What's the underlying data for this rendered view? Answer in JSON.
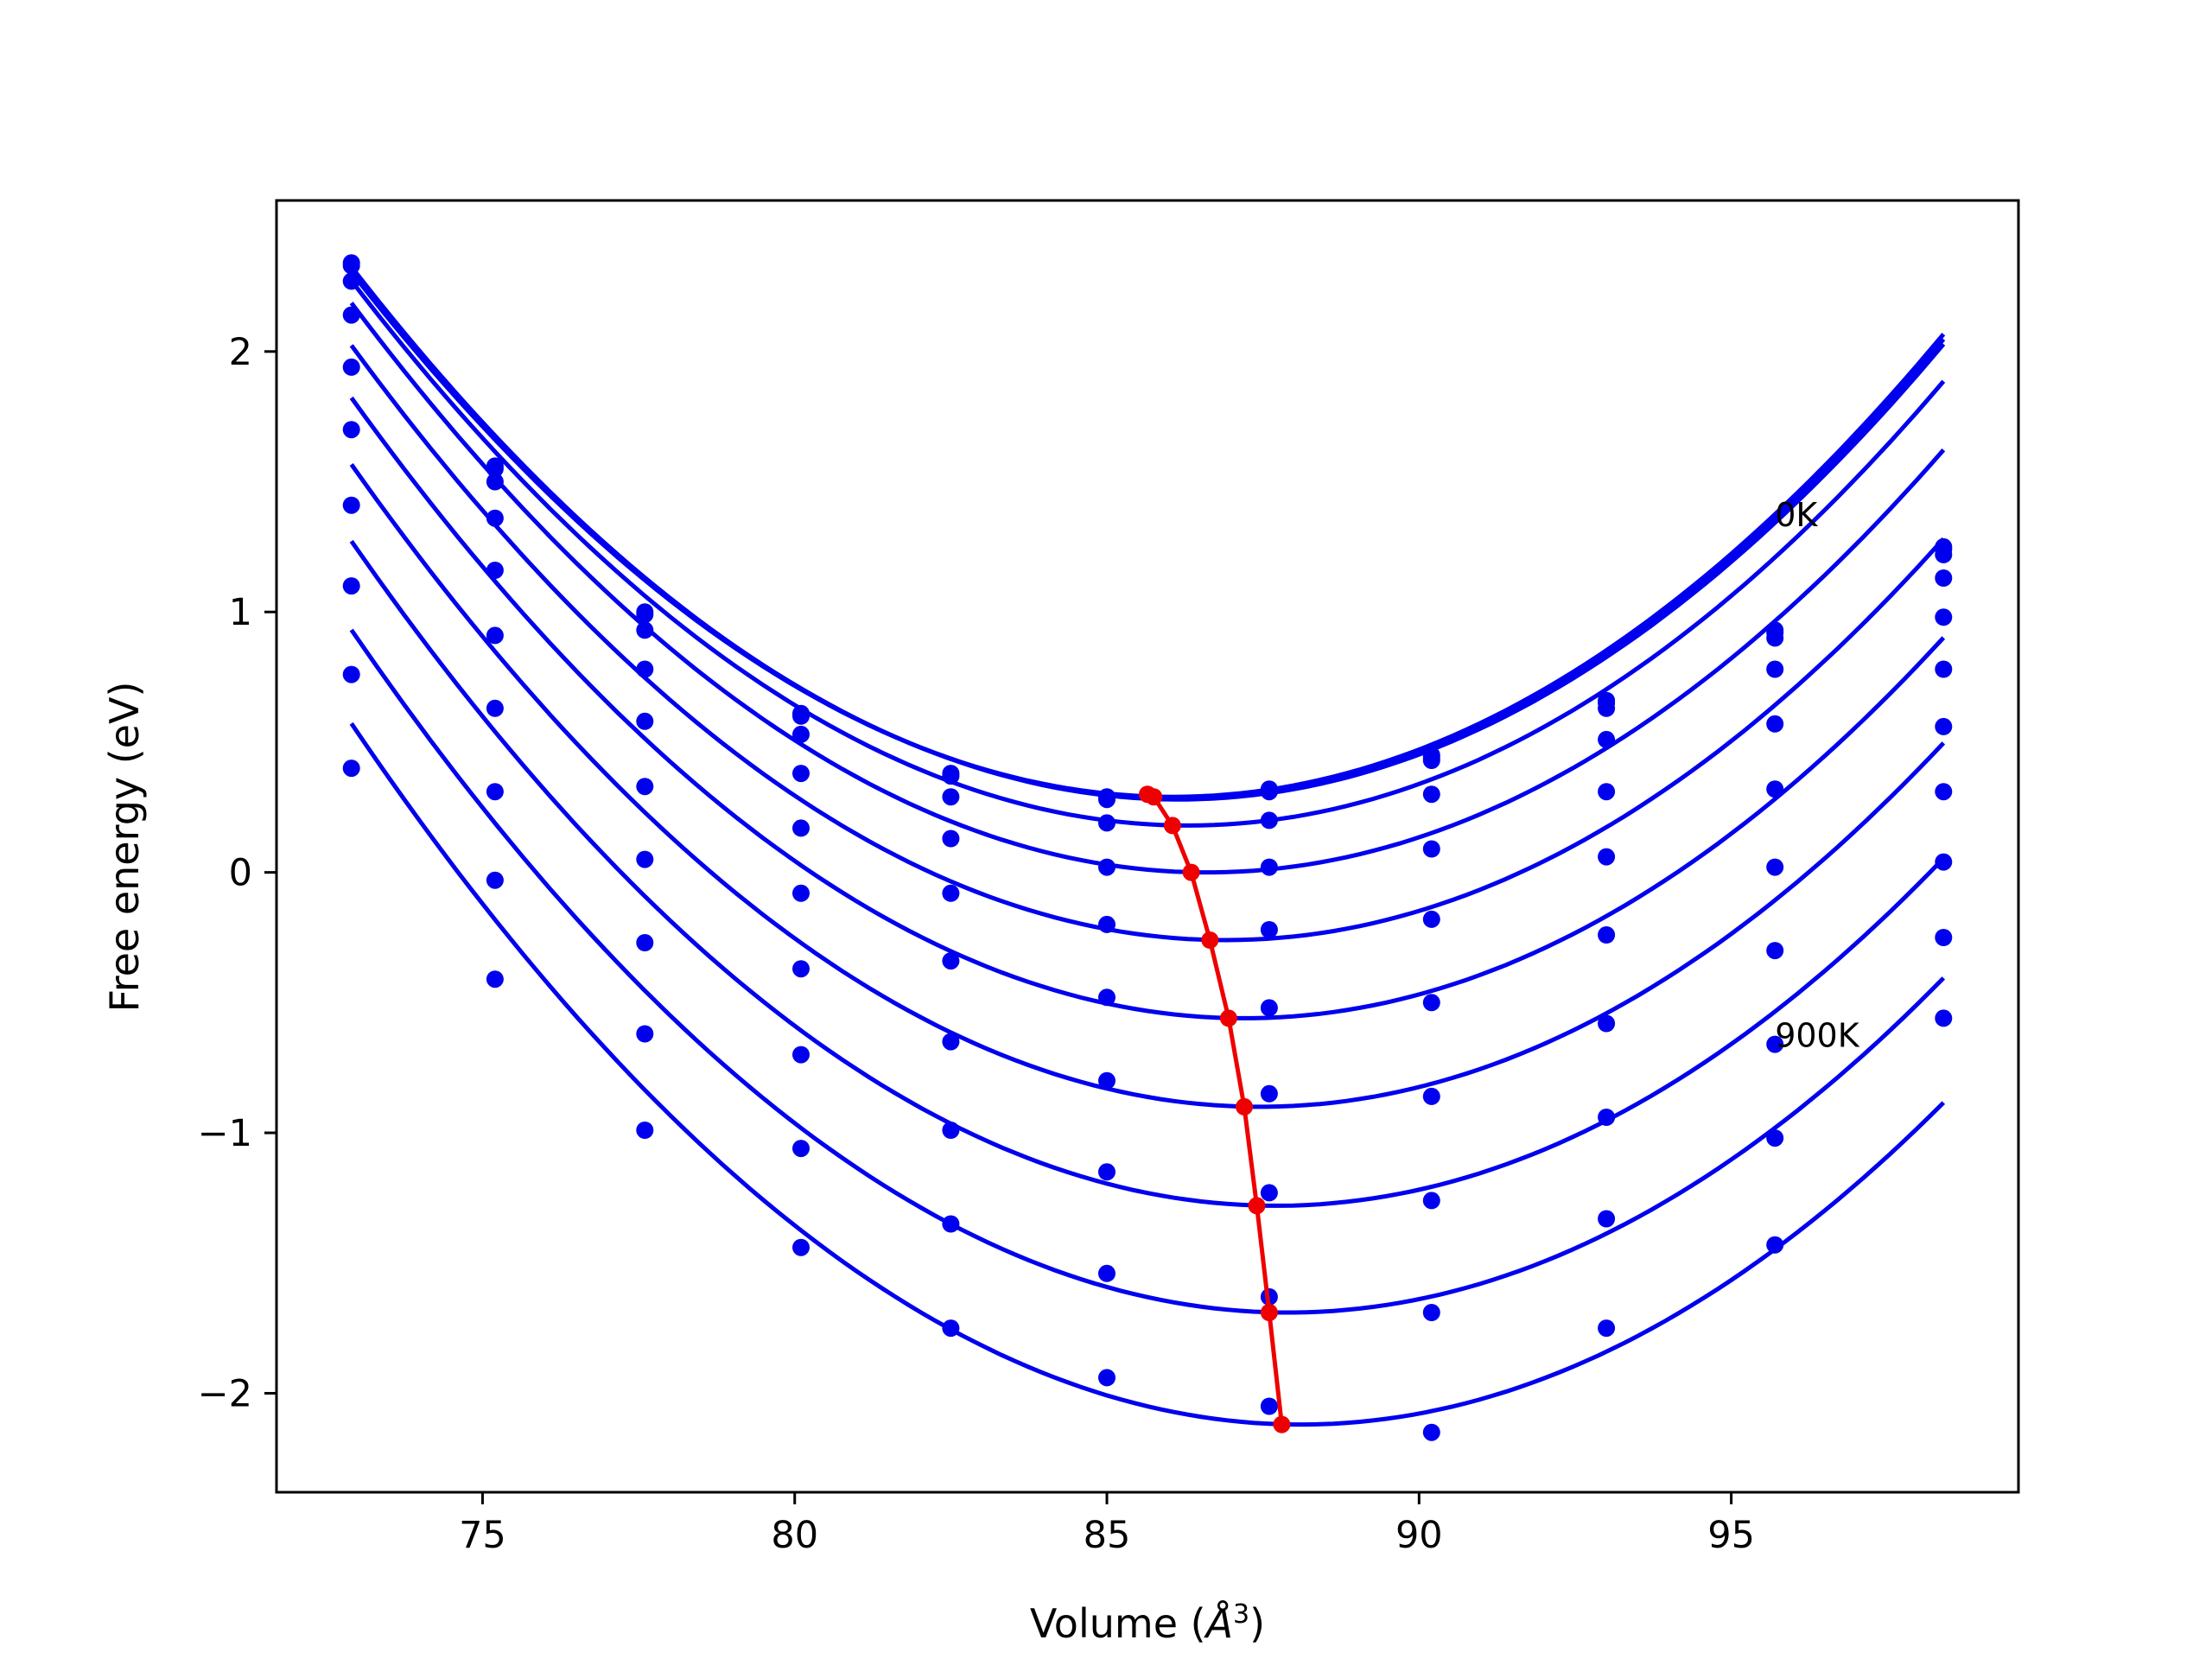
{
  "chart_data": {
    "type": "scatter",
    "title": "",
    "xlabel_prefix": "Volume (",
    "xlabel_symbol": "Å",
    "xlabel_exp": "3",
    "xlabel_suffix": ")",
    "ylabel": "Free energy (eV)",
    "xlim": [
      71.7,
      99.6
    ],
    "ylim": [
      -2.38,
      2.58
    ],
    "xticks": [
      75,
      80,
      85,
      90,
      95
    ],
    "yticks": [
      2,
      1,
      0,
      -1,
      -2
    ],
    "ytick_labels": [
      "2",
      "1",
      "0",
      "−1",
      "−2"
    ],
    "grid": false,
    "legend": "none",
    "colors": {
      "series": "#0000ee",
      "minima": "#ee0000",
      "frame": "#000000"
    },
    "annotations": [
      {
        "text": "0K",
        "x": 95.7,
        "y": 1.33
      },
      {
        "text": "900K",
        "x": 95.7,
        "y": -0.67
      }
    ],
    "x_points": [
      72.9,
      75.2,
      77.6,
      80.1,
      82.5,
      85.0,
      87.6,
      90.2,
      93.0,
      95.7,
      98.4
    ],
    "series": [
      {
        "temperature": "0K",
        "fit": {
          "a": 0.01165,
          "v0": 86.05,
          "f0": 0.29
        },
        "points": [
          2.34,
          1.56,
          1.0,
          0.61,
          0.38,
          0.29,
          0.32,
          0.45,
          0.66,
          0.93,
          1.25
        ]
      },
      {
        "fit": {
          "a": 0.01165,
          "v0": 86.1,
          "f0": 0.285
        },
        "points": [
          2.33,
          1.55,
          0.99,
          0.6,
          0.37,
          0.28,
          0.31,
          0.44,
          0.65,
          0.92,
          1.24
        ]
      },
      {
        "fit": {
          "a": 0.01165,
          "v0": 86.15,
          "f0": 0.28
        },
        "points": [
          2.27,
          1.5,
          0.93,
          0.53,
          0.29,
          0.19,
          0.2,
          0.43,
          0.63,
          0.9,
          1.22
        ]
      },
      {
        "fit": {
          "a": 0.01165,
          "v0": 86.3,
          "f0": 0.18
        },
        "points": [
          2.14,
          1.36,
          0.78,
          0.38,
          0.13,
          0.02,
          0.02,
          0.3,
          0.51,
          0.78,
          1.13
        ]
      },
      {
        "fit": {
          "a": 0.01165,
          "v0": 86.6,
          "f0": 0.0
        },
        "points": [
          1.94,
          1.16,
          0.58,
          0.17,
          -0.08,
          -0.2,
          -0.22,
          0.09,
          0.31,
          0.57,
          0.98
        ]
      },
      {
        "fit": {
          "a": 0.01165,
          "v0": 86.9,
          "f0": -0.26
        },
        "points": [
          1.7,
          0.91,
          0.33,
          -0.08,
          -0.34,
          -0.48,
          -0.52,
          -0.18,
          0.06,
          0.32,
          0.78
        ]
      },
      {
        "fit": {
          "a": 0.01165,
          "v0": 87.2,
          "f0": -0.56
        },
        "points": [
          1.41,
          0.63,
          0.05,
          -0.37,
          -0.65,
          -0.8,
          -0.85,
          -0.5,
          -0.24,
          0.02,
          0.56
        ]
      },
      {
        "fit": {
          "a": 0.01165,
          "v0": 87.45,
          "f0": -0.9
        },
        "points": [
          1.1,
          0.31,
          -0.27,
          -0.7,
          -0.99,
          -1.15,
          -1.23,
          -0.86,
          -0.58,
          -0.3,
          0.31
        ]
      },
      {
        "fit": {
          "a": 0.01165,
          "v0": 87.7,
          "f0": -1.28
        },
        "points": [
          0.76,
          -0.03,
          -0.62,
          -1.06,
          -1.35,
          -1.54,
          -1.63,
          -1.26,
          -0.94,
          -0.66,
          0.04
        ]
      },
      {
        "fit": {
          "a": 0.01165,
          "v0": 87.9,
          "f0": -1.69
        },
        "points": [
          0.4,
          -0.41,
          -0.99,
          -1.44,
          -1.75,
          -1.94,
          -2.05,
          -1.69,
          -1.33,
          -1.02,
          -0.25
        ]
      },
      {
        "temperature": "900K",
        "fit": {
          "a": 0.01165,
          "v0": 88.1,
          "f0": -2.12
        },
        "points": [
          null,
          null,
          null,
          null,
          null,
          null,
          null,
          -2.15,
          -1.75,
          -1.43,
          -0.56
        ]
      }
    ],
    "minima": [
      {
        "x": 85.65,
        "y": 0.3
      },
      {
        "x": 85.75,
        "y": 0.29
      },
      {
        "x": 86.05,
        "y": 0.18
      },
      {
        "x": 86.35,
        "y": 0.0
      },
      {
        "x": 86.65,
        "y": -0.26
      },
      {
        "x": 86.95,
        "y": -0.56
      },
      {
        "x": 87.2,
        "y": -0.9
      },
      {
        "x": 87.4,
        "y": -1.28
      },
      {
        "x": 87.6,
        "y": -1.69
      },
      {
        "x": 87.8,
        "y": -2.12
      }
    ]
  }
}
